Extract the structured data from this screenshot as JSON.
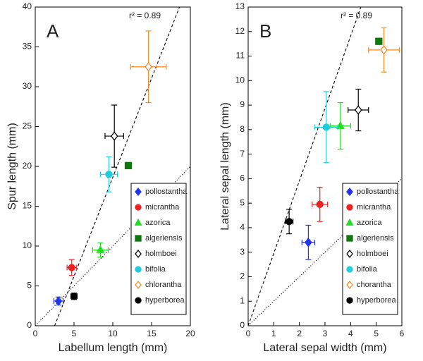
{
  "chart_data": [
    {
      "type": "scatter",
      "label": "A",
      "annotation": "r² = 0.89",
      "xlabel": "Labellum length (mm)",
      "ylabel": "Spur length (mm)",
      "xlim": [
        0,
        20
      ],
      "ylim": [
        0,
        40
      ],
      "xticks": [
        0,
        5,
        10,
        15,
        20
      ],
      "yticks": [
        0,
        5,
        10,
        15,
        20,
        25,
        30,
        35,
        40
      ],
      "legend": "lower right",
      "lines": [
        {
          "style": "dashed",
          "x": [
            2.5,
            18.6
          ],
          "y": [
            0,
            40
          ]
        },
        {
          "style": "dotted",
          "x": [
            0,
            20
          ],
          "y": [
            0,
            20
          ]
        }
      ],
      "series": [
        {
          "name": "pollostantha",
          "color": "#2233ee",
          "marker": "diamond",
          "filled": true,
          "x": [
            3.0
          ],
          "y": [
            3.1
          ],
          "xerr": [
            0.6
          ],
          "yerr": [
            0.5
          ]
        },
        {
          "name": "micrantha",
          "color": "#ee2222",
          "marker": "circle",
          "filled": true,
          "x": [
            4.7
          ],
          "y": [
            7.3
          ],
          "xerr": [
            0.6
          ],
          "yerr": [
            1.0
          ]
        },
        {
          "name": "azorica",
          "color": "#22dd22",
          "marker": "triangle",
          "filled": true,
          "x": [
            8.4
          ],
          "y": [
            9.5
          ],
          "xerr": [
            1.0
          ],
          "yerr": [
            0.9
          ]
        },
        {
          "name": "algeriensis",
          "color": "#117711",
          "marker": "square",
          "filled": true,
          "x": [
            12.0
          ],
          "y": [
            20.1
          ]
        },
        {
          "name": "holmboei",
          "color": "#000000",
          "marker": "diamond",
          "filled": false,
          "x": [
            10.2
          ],
          "y": [
            23.8
          ],
          "xerr": [
            1.2
          ],
          "yerr": [
            3.9
          ]
        },
        {
          "name": "bifolia",
          "color": "#22ccdd",
          "marker": "circle",
          "filled": true,
          "x": [
            9.5
          ],
          "y": [
            19.0
          ],
          "xerr": [
            1.1
          ],
          "yerr": [
            2.2
          ]
        },
        {
          "name": "chlorantha",
          "color": "#ff8822",
          "marker": "diamond",
          "filled": false,
          "x": [
            14.6
          ],
          "y": [
            32.5
          ],
          "xerr": [
            2.3
          ],
          "yerr": [
            4.5
          ]
        },
        {
          "name": "hyperborea",
          "color": "#000000",
          "marker": "circle",
          "filled": true,
          "x": [
            5.0
          ],
          "y": [
            3.7
          ],
          "xerr": [
            0.4
          ],
          "yerr": [
            0.4
          ]
        }
      ]
    },
    {
      "type": "scatter",
      "label": "B",
      "annotation": "r² = 0.89",
      "xlabel": "Lateral sepal width (mm)",
      "ylabel": "Lateral sepal length (mm)",
      "xlim": [
        0,
        6
      ],
      "ylim": [
        0,
        13
      ],
      "xticks": [
        0,
        1,
        2,
        3,
        4,
        5,
        6
      ],
      "yticks": [
        0,
        1,
        2,
        3,
        4,
        5,
        6,
        7,
        8,
        9,
        10,
        11,
        12,
        13
      ],
      "legend": "lower right",
      "lines": [
        {
          "style": "dashed",
          "x": [
            0,
            4.4
          ],
          "y": [
            0,
            13
          ]
        },
        {
          "style": "dotted",
          "x": [
            0,
            6
          ],
          "y": [
            0,
            6
          ]
        }
      ],
      "series": [
        {
          "name": "pollostantha",
          "color": "#2233ee",
          "marker": "diamond",
          "filled": true,
          "x": [
            2.35
          ],
          "y": [
            3.4
          ],
          "xerr": [
            0.25
          ],
          "yerr": [
            0.7
          ]
        },
        {
          "name": "micrantha",
          "color": "#ee2222",
          "marker": "circle",
          "filled": true,
          "x": [
            2.8
          ],
          "y": [
            4.95
          ],
          "xerr": [
            0.3
          ],
          "yerr": [
            0.7
          ]
        },
        {
          "name": "azorica",
          "color": "#22dd22",
          "marker": "triangle",
          "filled": true,
          "x": [
            3.6
          ],
          "y": [
            8.15
          ],
          "xerr": [
            0.4
          ],
          "yerr": [
            0.95
          ]
        },
        {
          "name": "algeriensis",
          "color": "#117711",
          "marker": "square",
          "filled": true,
          "x": [
            5.1
          ],
          "y": [
            11.6
          ]
        },
        {
          "name": "holmboei",
          "color": "#000000",
          "marker": "diamond",
          "filled": false,
          "x": [
            4.3
          ],
          "y": [
            8.8
          ],
          "xerr": [
            0.4
          ],
          "yerr": [
            0.85
          ]
        },
        {
          "name": "bifolia",
          "color": "#22ccdd",
          "marker": "circle",
          "filled": true,
          "x": [
            3.05
          ],
          "y": [
            8.1
          ],
          "xerr": [
            0.45
          ],
          "yerr": [
            1.45
          ]
        },
        {
          "name": "chorantha",
          "color": "#ff8822",
          "marker": "diamond",
          "filled": false,
          "x": [
            5.3
          ],
          "y": [
            11.25
          ],
          "xerr": [
            0.6
          ],
          "yerr": [
            0.9
          ]
        },
        {
          "name": "hyperborea",
          "color": "#000000",
          "marker": "circle",
          "filled": true,
          "x": [
            1.6
          ],
          "y": [
            4.25
          ],
          "xerr": [
            0.15
          ],
          "yerr": [
            0.5
          ]
        }
      ]
    }
  ]
}
